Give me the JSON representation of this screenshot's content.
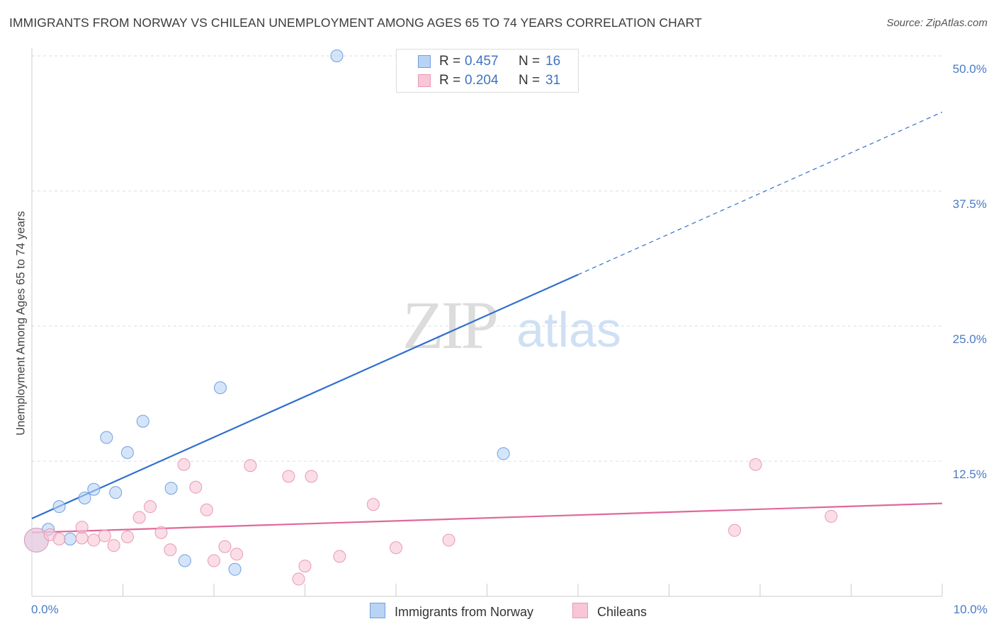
{
  "chart_data": {
    "type": "scatter",
    "title": "IMMIGRANTS FROM NORWAY VS CHILEAN UNEMPLOYMENT AMONG AGES 65 TO 74 YEARS CORRELATION CHART",
    "source": "Source: ZipAtlas.com",
    "xlabel": "",
    "ylabel": "Unemployment Among Ages 65 to 74 years",
    "xlim": [
      0,
      10
    ],
    "ylim": [
      0,
      50
    ],
    "x_tick_labels": [
      "0.0%",
      "10.0%"
    ],
    "y_ticks": [
      12.5,
      25.0,
      37.5,
      50.0
    ],
    "y_tick_labels": [
      "12.5%",
      "25.0%",
      "37.5%",
      "50.0%"
    ],
    "grid": true,
    "watermark": {
      "zip": "ZIP",
      "atlas": "atlas"
    },
    "series": [
      {
        "name": "Immigrants from Norway",
        "color": "#6f9fe0",
        "fill": "#b9d3f5",
        "line_color": "#2f6fcf",
        "r": "0.457",
        "n": "16",
        "trend": {
          "x0": 0.0,
          "y0": 7.2,
          "x1": 10.0,
          "y1": 44.8,
          "solid_until_x": 6.0
        },
        "points": [
          {
            "x": 0.05,
            "y": 5.2,
            "big": true
          },
          {
            "x": 0.18,
            "y": 6.2
          },
          {
            "x": 0.3,
            "y": 8.3
          },
          {
            "x": 0.42,
            "y": 5.3
          },
          {
            "x": 0.58,
            "y": 9.1
          },
          {
            "x": 0.68,
            "y": 9.9
          },
          {
            "x": 0.82,
            "y": 14.7
          },
          {
            "x": 0.92,
            "y": 9.6
          },
          {
            "x": 1.05,
            "y": 13.3
          },
          {
            "x": 1.22,
            "y": 16.2
          },
          {
            "x": 1.53,
            "y": 10.0
          },
          {
            "x": 1.68,
            "y": 3.3
          },
          {
            "x": 2.07,
            "y": 19.3
          },
          {
            "x": 2.23,
            "y": 2.5
          },
          {
            "x": 3.35,
            "y": 50.0
          },
          {
            "x": 5.18,
            "y": 13.2
          }
        ]
      },
      {
        "name": "Chileans",
        "color": "#e69ab5",
        "fill": "#f8c6d6",
        "line_color": "#e0689a",
        "r": "0.204",
        "n": "31",
        "trend": {
          "x0": 0.0,
          "y0": 5.9,
          "x1": 10.0,
          "y1": 8.6,
          "solid_until_x": 10.0
        },
        "points": [
          {
            "x": 0.05,
            "y": 5.2,
            "big": true
          },
          {
            "x": 0.2,
            "y": 5.7
          },
          {
            "x": 0.3,
            "y": 5.3
          },
          {
            "x": 0.55,
            "y": 5.4
          },
          {
            "x": 0.55,
            "y": 6.4
          },
          {
            "x": 0.68,
            "y": 5.2
          },
          {
            "x": 0.8,
            "y": 5.6
          },
          {
            "x": 0.9,
            "y": 4.7
          },
          {
            "x": 1.05,
            "y": 5.5
          },
          {
            "x": 1.18,
            "y": 7.3
          },
          {
            "x": 1.3,
            "y": 8.3
          },
          {
            "x": 1.42,
            "y": 5.9
          },
          {
            "x": 1.52,
            "y": 4.3
          },
          {
            "x": 1.67,
            "y": 12.2
          },
          {
            "x": 1.8,
            "y": 10.1
          },
          {
            "x": 1.92,
            "y": 8.0
          },
          {
            "x": 2.0,
            "y": 3.3
          },
          {
            "x": 2.12,
            "y": 4.6
          },
          {
            "x": 2.25,
            "y": 3.9
          },
          {
            "x": 2.4,
            "y": 12.1
          },
          {
            "x": 2.82,
            "y": 11.1
          },
          {
            "x": 2.93,
            "y": 1.6
          },
          {
            "x": 3.0,
            "y": 2.8
          },
          {
            "x": 3.07,
            "y": 11.1
          },
          {
            "x": 3.38,
            "y": 3.7
          },
          {
            "x": 3.75,
            "y": 8.5
          },
          {
            "x": 4.0,
            "y": 4.5
          },
          {
            "x": 4.58,
            "y": 5.2
          },
          {
            "x": 7.72,
            "y": 6.1
          },
          {
            "x": 7.95,
            "y": 12.2
          },
          {
            "x": 8.78,
            "y": 7.4
          }
        ]
      }
    ]
  },
  "legend": {
    "r_label": "R =",
    "n_label": "N ="
  }
}
